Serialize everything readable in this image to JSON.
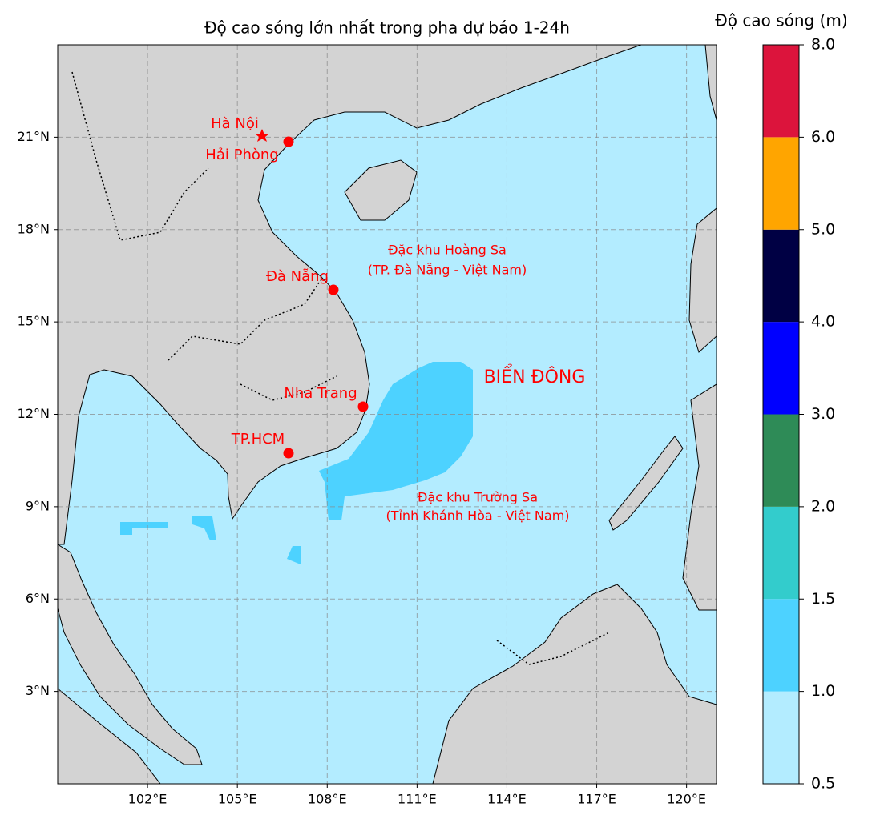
{
  "map": {
    "title": "Độ cao sóng lớn nhất trong pha dự báo 1-24h",
    "xlim": [
      99,
      121
    ],
    "ylim": [
      0,
      24
    ],
    "xticks": [
      {
        "value": 102,
        "label": "102°E"
      },
      {
        "value": 105,
        "label": "105°E"
      },
      {
        "value": 108,
        "label": "108°E"
      },
      {
        "value": 111,
        "label": "111°E"
      },
      {
        "value": 114,
        "label": "114°E"
      },
      {
        "value": 117,
        "label": "117°E"
      },
      {
        "value": 120,
        "label": "120°E"
      }
    ],
    "yticks": [
      {
        "value": 3,
        "label": "3°N"
      },
      {
        "value": 6,
        "label": "6°N"
      },
      {
        "value": 9,
        "label": "9°N"
      },
      {
        "value": 12,
        "label": "12°N"
      },
      {
        "value": 15,
        "label": "15°N"
      },
      {
        "value": 18,
        "label": "18°N"
      },
      {
        "value": 21,
        "label": "21°N"
      }
    ],
    "cities": [
      "Hà Nội",
      "Hải Phòng",
      "Đà Nẵng",
      "Nha Trang",
      "TP.HCM"
    ],
    "regions": {
      "hoang_sa": [
        "Đặc khu Hoàng Sa",
        "(TP. Đà Nẵng - Việt Nam)"
      ],
      "truong_sa": [
        "Đặc khu Trường Sa",
        "(Tỉnh Khánh Hòa - Việt Nam)"
      ],
      "sea": "BIỂN ĐÔNG"
    }
  },
  "colorbar": {
    "title": "Độ cao sóng (m)",
    "ticks": [
      0.5,
      {
        "value": 1,
        "label": "1.0"
      },
      1.5,
      {
        "value": 2,
        "label": "2.0"
      },
      {
        "value": 3,
        "label": "3.0"
      },
      {
        "value": 4,
        "label": "4.0"
      },
      {
        "value": 5,
        "label": "5.0"
      },
      {
        "value": 6,
        "label": "6.0"
      },
      {
        "value": 8,
        "label": "8.0"
      }
    ],
    "colors": [
      "#b3ecff",
      "#4dd2ff",
      "#33cccc",
      "#2e8b57",
      "#0000ff",
      "#000044",
      "#ffa500",
      "#dc143c"
    ]
  }
}
